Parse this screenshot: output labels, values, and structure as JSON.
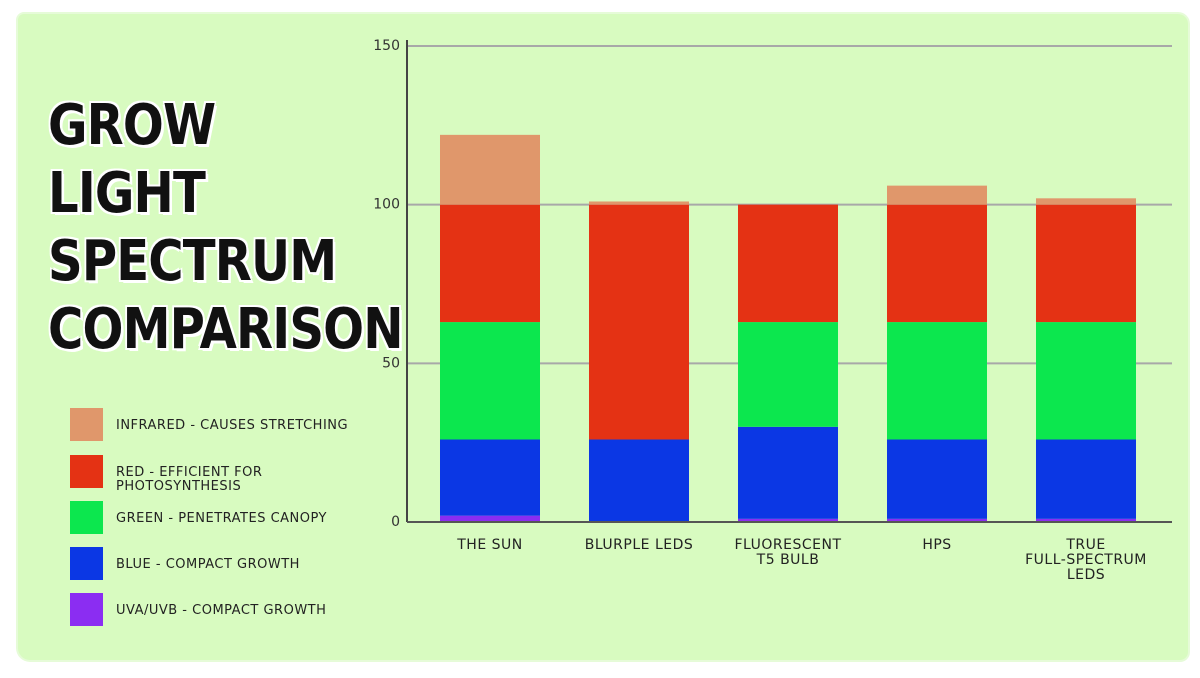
{
  "title": "GROW LIGHT\nSPECTRUM\nCOMPARISON",
  "colors": {
    "infrared": "#e0976b",
    "red": "#e43214",
    "green": "#0ce74e",
    "blue": "#0b37e4",
    "uv": "#8b2df2",
    "panel": "#d8fbc0",
    "grid": "#a8a8a8"
  },
  "legend": [
    {
      "key": "infrared",
      "label": "INFRARED - CAUSES STRETCHING",
      "color": "#e0976b"
    },
    {
      "key": "red",
      "label": "RED - EFFICIENT FOR\n            PHOTOSYNTHESIS",
      "color": "#e43214"
    },
    {
      "key": "green",
      "label": "GREEN - PENETRATES CANOPY",
      "color": "#0ce74e"
    },
    {
      "key": "blue",
      "label": "BLUE - COMPACT GROWTH",
      "color": "#0b37e4"
    },
    {
      "key": "uv",
      "label": "UVA/UVB - COMPACT GROWTH",
      "color": "#8b2df2"
    }
  ],
  "chart_data": {
    "type": "bar",
    "stacked": true,
    "title": "GROW LIGHT SPECTRUM COMPARISON",
    "xlabel": "",
    "ylabel": "",
    "ylim": [
      0,
      150
    ],
    "yticks": [
      0,
      50,
      100,
      150
    ],
    "grid": true,
    "legend_position": "left",
    "categories": [
      [
        "THE SUN"
      ],
      [
        "BLURPLE LEDS"
      ],
      [
        "FLUORESCENT",
        "T5 BULB"
      ],
      [
        "HPS"
      ],
      [
        "TRUE",
        "FULL-SPECTRUM",
        "LEDS"
      ]
    ],
    "series": [
      {
        "name": "UVA/UVB - COMPACT GROWTH",
        "key": "uv",
        "color": "#8b2df2",
        "values": [
          2,
          0,
          1,
          1,
          1
        ]
      },
      {
        "name": "BLUE - COMPACT GROWTH",
        "key": "blue",
        "color": "#0b37e4",
        "values": [
          24,
          26,
          29,
          25,
          25
        ]
      },
      {
        "name": "GREEN - PENETRATES CANOPY",
        "key": "green",
        "color": "#0ce74e",
        "values": [
          37,
          0,
          33,
          37,
          37
        ]
      },
      {
        "name": "RED - EFFICIENT FOR PHOTOSYNTHESIS",
        "key": "red",
        "color": "#e43214",
        "values": [
          37,
          74,
          37,
          37,
          37
        ]
      },
      {
        "name": "INFRARED - CAUSES STRETCHING",
        "key": "infrared",
        "color": "#e0976b",
        "values": [
          22,
          1,
          0,
          6,
          2
        ]
      }
    ]
  }
}
